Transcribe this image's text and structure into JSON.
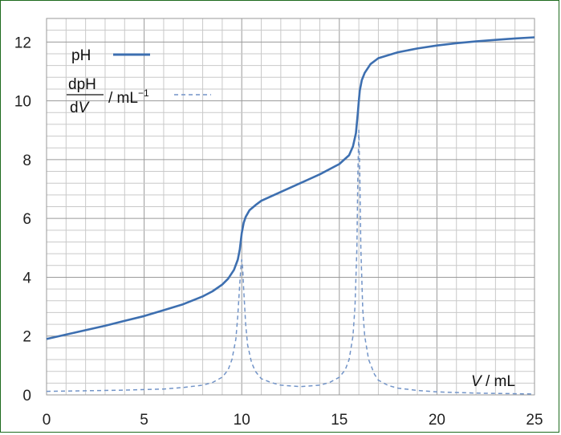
{
  "chart_data": {
    "type": "line",
    "xlabel_var": "V",
    "xlabel_unit": " / mL",
    "xlim": [
      0,
      25
    ],
    "ylim": [
      0,
      12.8
    ],
    "x_ticks": [
      "0",
      "5",
      "10",
      "15",
      "20",
      "25"
    ],
    "y_ticks": [
      "0",
      "2",
      "4",
      "6",
      "8",
      "10",
      "12"
    ],
    "grid": true,
    "legend_placement": "top-left",
    "colors": {
      "ph": "#3d6fb0",
      "deriv": "#7294c8",
      "grid": "#c9c9c9",
      "major_grid": "#9a9a9a",
      "border": "#1e6b1e"
    },
    "legend": {
      "ph_label": "pH",
      "deriv_num": "dpH",
      "deriv_den_d": "d",
      "deriv_den_v": "V",
      "deriv_unit": " / mL",
      "deriv_exp": "−1"
    },
    "series": [
      {
        "name": "pH",
        "style": "solid",
        "x": [
          0,
          1,
          2,
          3,
          4,
          5,
          6,
          7,
          8,
          8.5,
          9,
          9.3,
          9.6,
          9.8,
          9.9,
          10,
          10.1,
          10.2,
          10.4,
          10.7,
          11,
          12,
          13,
          14,
          15,
          15.5,
          15.7,
          15.85,
          15.95,
          16,
          16.05,
          16.15,
          16.3,
          16.6,
          17,
          18,
          19,
          20,
          21,
          22,
          23,
          24,
          25
        ],
        "y": [
          1.9,
          2.05,
          2.2,
          2.35,
          2.52,
          2.68,
          2.88,
          3.08,
          3.35,
          3.52,
          3.75,
          3.95,
          4.25,
          4.6,
          4.95,
          5.5,
          5.85,
          6.05,
          6.28,
          6.45,
          6.6,
          6.9,
          7.2,
          7.5,
          7.85,
          8.15,
          8.45,
          8.9,
          9.6,
          10.0,
          10.35,
          10.7,
          10.95,
          11.25,
          11.45,
          11.65,
          11.78,
          11.88,
          11.96,
          12.02,
          12.07,
          12.12,
          12.16
        ]
      },
      {
        "name": "dpH/dV / mL−1",
        "style": "dashed",
        "x": [
          0,
          2,
          4,
          6,
          7,
          8,
          8.5,
          9,
          9.3,
          9.5,
          9.7,
          9.8,
          9.9,
          9.95,
          10,
          10.05,
          10.1,
          10.2,
          10.3,
          10.5,
          10.7,
          11,
          11.5,
          12,
          13,
          14,
          14.5,
          15,
          15.3,
          15.5,
          15.7,
          15.8,
          15.9,
          15.95,
          16,
          16.05,
          16.1,
          16.2,
          16.3,
          16.5,
          16.8,
          17,
          17.5,
          18,
          19,
          20,
          22,
          25
        ],
        "y": [
          0.12,
          0.14,
          0.16,
          0.2,
          0.25,
          0.33,
          0.42,
          0.6,
          0.85,
          1.2,
          1.9,
          2.7,
          3.8,
          4.3,
          4.6,
          4.3,
          3.6,
          2.4,
          1.7,
          1.1,
          0.8,
          0.55,
          0.42,
          0.33,
          0.28,
          0.33,
          0.42,
          0.6,
          0.85,
          1.2,
          2.0,
          3.0,
          5.0,
          7.5,
          9.0,
          7.5,
          5.0,
          2.9,
          2.0,
          1.2,
          0.7,
          0.5,
          0.32,
          0.23,
          0.15,
          0.1,
          0.06,
          0.03
        ]
      }
    ]
  }
}
